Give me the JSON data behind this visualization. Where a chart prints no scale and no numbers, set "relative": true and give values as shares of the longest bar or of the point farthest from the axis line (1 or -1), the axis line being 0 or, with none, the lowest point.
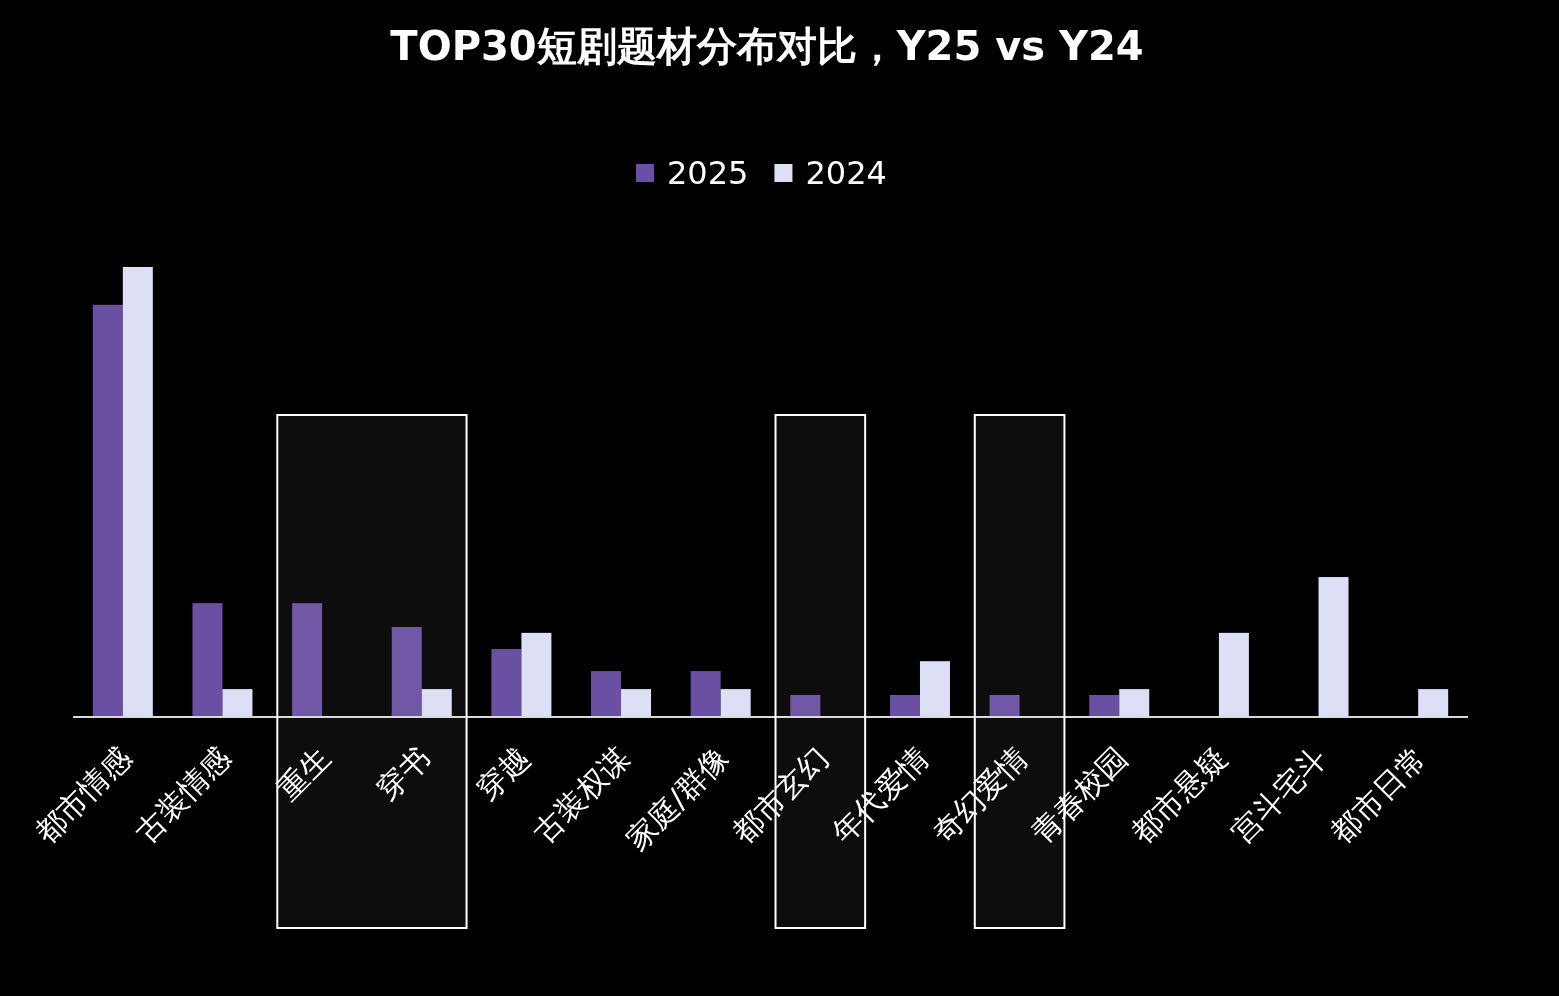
{
  "chart_data": {
    "type": "bar",
    "title": "TOP30短剧题材分布对比，Y25 vs Y24",
    "relative": true,
    "categories": [
      "都市情感",
      "古装情感",
      "重生",
      "穿书",
      "穿越",
      "古装权谋",
      "家庭/群像",
      "都市玄幻",
      "年代爱情",
      "奇幻爱情",
      "青春校园",
      "都市悬疑",
      "宫斗宅斗",
      "都市日常"
    ],
    "series": [
      {
        "name": "2025",
        "color": "#6a50a2",
        "values": [
          0.916,
          0.253,
          0.253,
          0.2,
          0.151,
          0.102,
          0.102,
          0.049,
          0.049,
          0.049,
          0.049,
          0,
          0,
          0
        ]
      },
      {
        "name": "2024",
        "color": "#dcdff5",
        "values": [
          1,
          0.062,
          0,
          0.062,
          0.187,
          0.062,
          0.062,
          0,
          0.124,
          0,
          0.062,
          0.187,
          0.311,
          0.062
        ]
      }
    ],
    "bands": [
      {
        "axis": "x",
        "from": "重生",
        "to": "穿书",
        "color": "#ffffff"
      },
      {
        "axis": "x",
        "from": "都市玄幻",
        "to": "都市玄幻",
        "color": "#ffffff"
      },
      {
        "axis": "x",
        "from": "奇幻爱情",
        "to": "奇幻爱情",
        "color": "#ffffff"
      }
    ],
    "legend": "top",
    "grid": false
  }
}
